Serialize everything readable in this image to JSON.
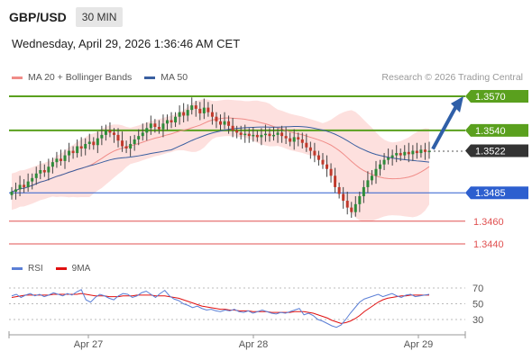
{
  "header": {
    "pair": "GBP/USD",
    "timeframe": "30 MIN",
    "datetime": "Wednesday, April 29, 2026 1:36:46 AM CET"
  },
  "legend": {
    "ma20": {
      "label": "MA 20 + Bollinger Bands",
      "color": "#f08c88"
    },
    "ma50": {
      "label": "MA 50",
      "color": "#3a5fa0"
    },
    "credit": "Research © 2026 Trading Central"
  },
  "rsi_legend": {
    "rsi": {
      "label": "RSI",
      "color": "#5b7fd6"
    },
    "ma9": {
      "label": "9MA",
      "color": "#e01010"
    }
  },
  "chart_data": {
    "type": "candlestick",
    "x_tick_labels": [
      "Apr 27",
      "Apr 28",
      "Apr 29"
    ],
    "levels": [
      {
        "value": 1.357,
        "label": "1.3570",
        "color": "#5aa01e",
        "style": "resistance"
      },
      {
        "value": 1.354,
        "label": "1.3540",
        "color": "#5aa01e",
        "style": "resistance"
      },
      {
        "value": 1.3522,
        "label": "1.3522",
        "color": "#333333",
        "style": "last-price"
      },
      {
        "value": 1.3485,
        "label": "1.3485",
        "color": "#2d5fcf",
        "style": "pivot"
      },
      {
        "value": 1.346,
        "label": "1.3460",
        "color": "#e05050",
        "style": "support"
      },
      {
        "value": 1.344,
        "label": "1.3440",
        "color": "#e05050",
        "style": "support"
      }
    ],
    "close_series": [
      1.3486,
      1.3488,
      1.3492,
      1.349,
      1.3495,
      1.3498,
      1.3502,
      1.3505,
      1.3503,
      1.3508,
      1.3512,
      1.3515,
      1.3513,
      1.3518,
      1.3522,
      1.352,
      1.3526,
      1.3524,
      1.3528,
      1.353,
      1.3527,
      1.3533,
      1.3536,
      1.354,
      1.3538,
      1.3536,
      1.3531,
      1.3526,
      1.3524,
      1.3528,
      1.3532,
      1.3535,
      1.3538,
      1.3542,
      1.3546,
      1.3543,
      1.3541,
      1.3546,
      1.3549,
      1.3547,
      1.3552,
      1.3556,
      1.3553,
      1.3558,
      1.3562,
      1.3559,
      1.3555,
      1.356,
      1.3556,
      1.3552,
      1.3548,
      1.3545,
      1.3548,
      1.3544,
      1.354,
      1.3538,
      1.3536,
      1.3537,
      1.3535,
      1.3536,
      1.3534,
      1.3536,
      1.3537,
      1.3535,
      1.3536,
      1.3538,
      1.3535,
      1.3533,
      1.353,
      1.3534,
      1.3532,
      1.3529,
      1.3525,
      1.3522,
      1.3518,
      1.3514,
      1.351,
      1.3506,
      1.35,
      1.349,
      1.3484,
      1.3478,
      1.3472,
      1.3468,
      1.3475,
      1.3482,
      1.349,
      1.3496,
      1.35,
      1.3506,
      1.351,
      1.3514,
      1.3516,
      1.3518,
      1.352,
      1.3518,
      1.3521,
      1.3519,
      1.3522,
      1.352,
      1.3523,
      1.3521,
      1.3522
    ],
    "rsi": {
      "axis_ticks": [
        70,
        50,
        30
      ],
      "ylim": [
        10,
        75
      ],
      "rsi_values": [
        60,
        62,
        58,
        61,
        63,
        60,
        62,
        59,
        61,
        64,
        62,
        60,
        63,
        61,
        65,
        68,
        55,
        52,
        58,
        62,
        60,
        57,
        55,
        60,
        63,
        62,
        58,
        60,
        64,
        66,
        62,
        58,
        63,
        67,
        60,
        56,
        54,
        50,
        48,
        45,
        47,
        44,
        42,
        43,
        41,
        40,
        42,
        41,
        43,
        40,
        39,
        41,
        38,
        40,
        42,
        40,
        38,
        37,
        39,
        38,
        40,
        42,
        44,
        36,
        38,
        35,
        30,
        28,
        25,
        22,
        20,
        23,
        30,
        38,
        45,
        52,
        56,
        58,
        60,
        62,
        59,
        61,
        63,
        60,
        58,
        61,
        62,
        59,
        60,
        61,
        62
      ],
      "ma9_values": [
        58,
        59,
        60,
        61,
        61,
        61,
        61,
        61,
        61,
        62,
        62,
        62,
        62,
        62,
        62,
        63,
        62,
        61,
        60,
        60,
        60,
        59,
        59,
        59,
        60,
        60,
        60,
        61,
        61,
        61,
        61,
        60,
        60,
        60,
        59,
        58,
        57,
        55,
        53,
        51,
        49,
        47,
        46,
        45,
        44,
        43,
        43,
        42,
        42,
        41,
        41,
        41,
        40,
        40,
        40,
        40,
        39,
        39,
        39,
        39,
        39,
        40,
        40,
        40,
        39,
        38,
        36,
        34,
        32,
        29,
        27,
        25,
        26,
        28,
        31,
        35,
        40,
        44,
        48,
        52,
        55,
        57,
        58,
        59,
        60,
        60,
        61,
        61,
        61,
        61,
        61
      ]
    }
  }
}
